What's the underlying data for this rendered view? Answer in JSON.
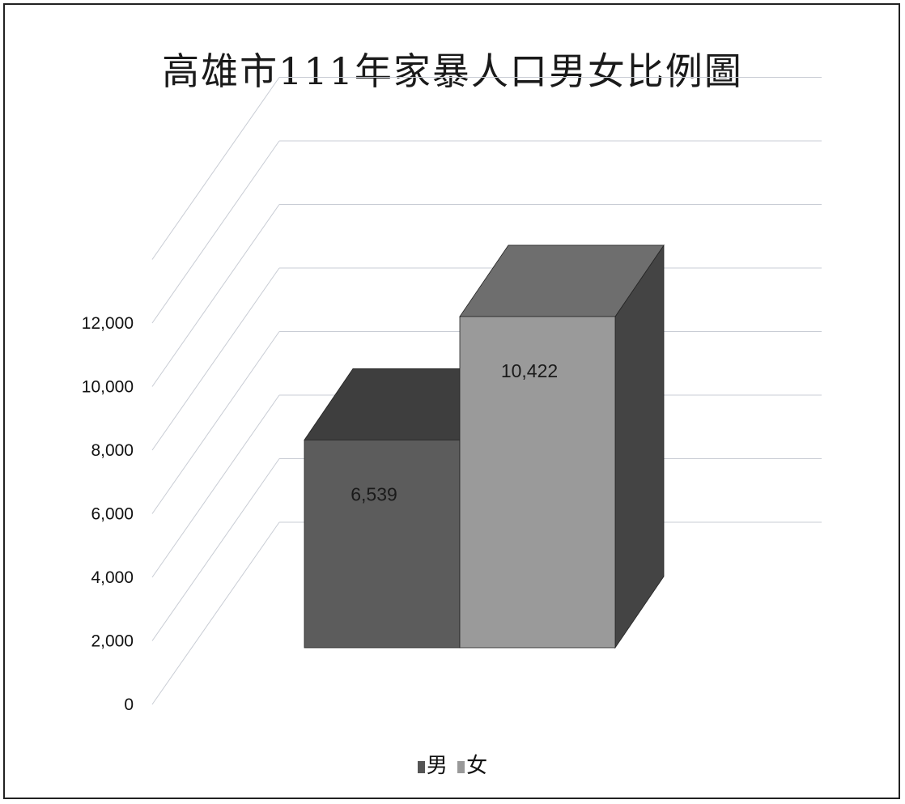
{
  "chart_data": {
    "type": "bar",
    "title": "高雄市111年家暴人口男女比例圖",
    "categories": [
      "男",
      "女"
    ],
    "values": [
      6539,
      10422
    ],
    "data_labels": [
      "6,539",
      "10,422"
    ],
    "y_ticks": [
      "0",
      "2,000",
      "4,000",
      "6,000",
      "8,000",
      "10,000",
      "12,000"
    ],
    "ylim": [
      0,
      12000
    ],
    "grid": true,
    "legend_position": "bottom",
    "style": "3d-column",
    "series_colors": {
      "男": {
        "front": "#5c5c5c",
        "top": "#3e3e3e",
        "side": "#3a3a3a"
      },
      "女": {
        "front": "#9a9a9a",
        "top": "#6e6e6e",
        "side": "#444444"
      }
    }
  },
  "legend": {
    "items": [
      {
        "label": "男",
        "color": "#555555"
      },
      {
        "label": "女",
        "color": "#999999"
      }
    ]
  }
}
